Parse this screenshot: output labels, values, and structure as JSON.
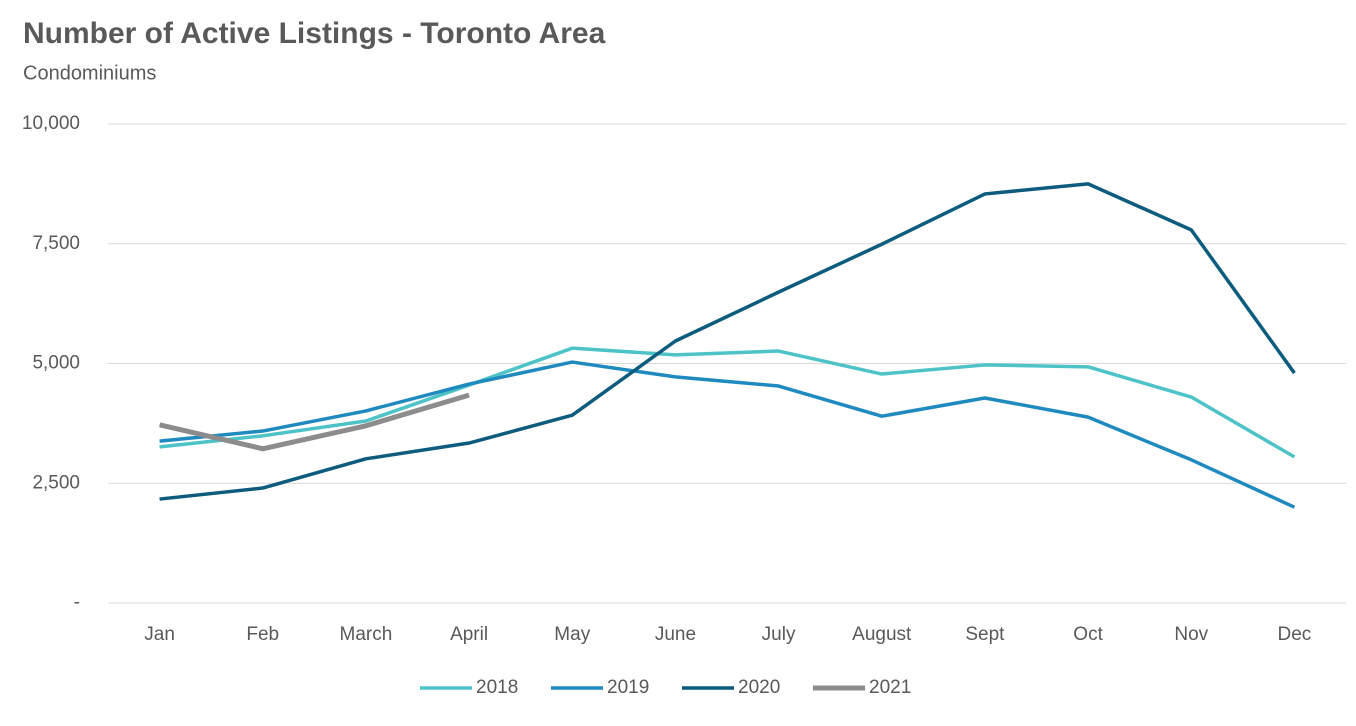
{
  "chart_data": {
    "type": "line",
    "title": "Number of Active Listings - Toronto Area",
    "subtitle": "Condominiums",
    "categories": [
      "Jan",
      "Feb",
      "March",
      "April",
      "May",
      "June",
      "July",
      "August",
      "Sept",
      "Oct",
      "Nov",
      "Dec"
    ],
    "series": [
      {
        "name": "2018",
        "color": "#4dc3c8",
        "values": [
          3260,
          3490,
          3800,
          4550,
          5320,
          5180,
          5260,
          4780,
          4970,
          4930,
          4300,
          3050
        ]
      },
      {
        "name": "2019",
        "color": "#1f8ac0",
        "values": [
          3380,
          3590,
          4010,
          4570,
          5030,
          4720,
          4530,
          3900,
          4280,
          3880,
          2990,
          2000
        ]
      },
      {
        "name": "2020",
        "color": "#0d5c7d",
        "values": [
          2170,
          2400,
          3010,
          3340,
          3920,
          5470,
          6490,
          7490,
          8540,
          8750,
          7790,
          4800
        ]
      },
      {
        "name": "2021",
        "color": "#8c8c8c",
        "values": [
          3720,
          3220,
          3700,
          4340,
          null,
          null,
          null,
          null,
          null,
          null,
          null,
          null
        ]
      }
    ],
    "ylim": [
      0,
      10000
    ],
    "yticks": [
      {
        "value": 0,
        "label": "-"
      },
      {
        "value": 2500,
        "label": "2,500"
      },
      {
        "value": 5000,
        "label": "5,000"
      },
      {
        "value": 7500,
        "label": "7,500"
      },
      {
        "value": 10000,
        "label": "10,000"
      }
    ],
    "grid": true,
    "legend": "bottom"
  }
}
